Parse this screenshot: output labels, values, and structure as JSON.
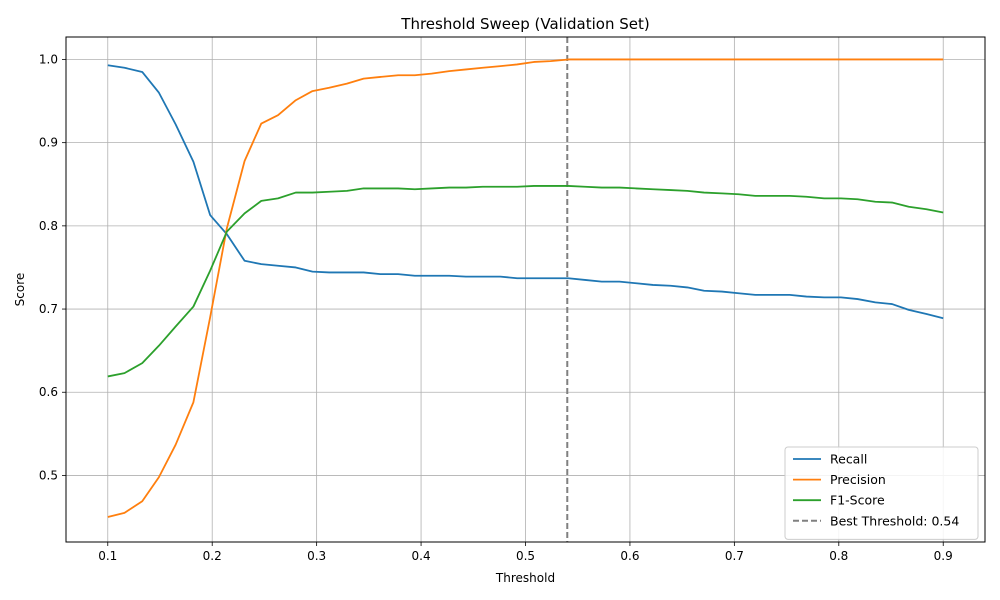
{
  "chart_data": {
    "type": "line",
    "title": "Threshold Sweep (Validation Set)",
    "xlabel": "Threshold",
    "ylabel": "Score",
    "xlim": [
      0.06,
      0.94
    ],
    "ylim": [
      0.42,
      1.027
    ],
    "xticks": [
      0.1,
      0.2,
      0.3,
      0.4,
      0.5,
      0.6,
      0.7,
      0.8,
      0.9
    ],
    "yticks": [
      0.5,
      0.6,
      0.7,
      0.8,
      0.9,
      1.0
    ],
    "xtick_labels": [
      "0.1",
      "0.2",
      "0.3",
      "0.4",
      "0.5",
      "0.6",
      "0.7",
      "0.8",
      "0.9"
    ],
    "ytick_labels": [
      "0.5",
      "0.6",
      "0.7",
      "0.8",
      "0.9",
      "1.0"
    ],
    "grid": true,
    "legend_position": "bottom-right",
    "x": [
      0.1,
      0.116,
      0.133,
      0.149,
      0.165,
      0.182,
      0.198,
      0.214,
      0.231,
      0.247,
      0.263,
      0.28,
      0.296,
      0.312,
      0.329,
      0.345,
      0.361,
      0.378,
      0.394,
      0.41,
      0.427,
      0.443,
      0.459,
      0.476,
      0.492,
      0.508,
      0.524,
      0.541,
      0.557,
      0.573,
      0.59,
      0.606,
      0.622,
      0.639,
      0.655,
      0.671,
      0.688,
      0.704,
      0.72,
      0.737,
      0.753,
      0.769,
      0.786,
      0.802,
      0.818,
      0.835,
      0.851,
      0.867,
      0.884,
      0.9
    ],
    "series": [
      {
        "name": "Recall",
        "color": "#1f77b4",
        "values": [
          0.993,
          0.99,
          0.985,
          0.96,
          0.922,
          0.877,
          0.813,
          0.79,
          0.758,
          0.754,
          0.752,
          0.75,
          0.745,
          0.744,
          0.744,
          0.744,
          0.742,
          0.742,
          0.74,
          0.74,
          0.74,
          0.739,
          0.739,
          0.739,
          0.737,
          0.737,
          0.737,
          0.737,
          0.735,
          0.733,
          0.733,
          0.731,
          0.729,
          0.728,
          0.726,
          0.722,
          0.721,
          0.719,
          0.717,
          0.717,
          0.717,
          0.715,
          0.714,
          0.714,
          0.712,
          0.708,
          0.706,
          0.699,
          0.694,
          0.689
        ]
      },
      {
        "name": "Precision",
        "color": "#ff7f0e",
        "values": [
          0.45,
          0.455,
          0.469,
          0.498,
          0.537,
          0.588,
          0.69,
          0.797,
          0.878,
          0.923,
          0.933,
          0.951,
          0.962,
          0.966,
          0.971,
          0.977,
          0.979,
          0.981,
          0.981,
          0.983,
          0.986,
          0.988,
          0.99,
          0.992,
          0.994,
          0.997,
          0.998,
          1.0,
          1.0,
          1.0,
          1.0,
          1.0,
          1.0,
          1.0,
          1.0,
          1.0,
          1.0,
          1.0,
          1.0,
          1.0,
          1.0,
          1.0,
          1.0,
          1.0,
          1.0,
          1.0,
          1.0,
          1.0,
          1.0,
          1.0
        ]
      },
      {
        "name": "F1-Score",
        "color": "#2ca02c",
        "values": [
          0.619,
          0.623,
          0.635,
          0.656,
          0.679,
          0.703,
          0.746,
          0.793,
          0.815,
          0.83,
          0.833,
          0.84,
          0.84,
          0.841,
          0.842,
          0.845,
          0.845,
          0.845,
          0.844,
          0.845,
          0.846,
          0.846,
          0.847,
          0.847,
          0.847,
          0.848,
          0.848,
          0.848,
          0.847,
          0.846,
          0.846,
          0.845,
          0.844,
          0.843,
          0.842,
          0.84,
          0.839,
          0.838,
          0.836,
          0.836,
          0.836,
          0.835,
          0.833,
          0.833,
          0.832,
          0.829,
          0.828,
          0.823,
          0.82,
          0.816
        ]
      }
    ],
    "reference_line": {
      "label": "Best Threshold: 0.54",
      "x": 0.54,
      "color": "#808080",
      "style": "dashed"
    }
  }
}
